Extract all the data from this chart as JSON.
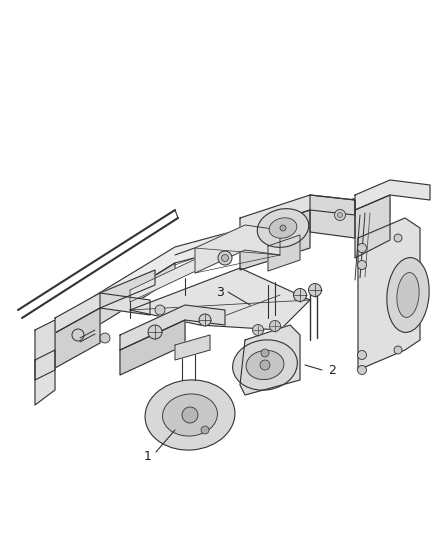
{
  "background_color": "#ffffff",
  "line_color": "#333333",
  "label_color": "#222222",
  "figsize": [
    4.38,
    5.33
  ],
  "dpi": 100,
  "line_width": 0.8,
  "fill_light": "#e8e8e8",
  "fill_mid": "#d5d5d5",
  "fill_dark": "#c0c0c0"
}
